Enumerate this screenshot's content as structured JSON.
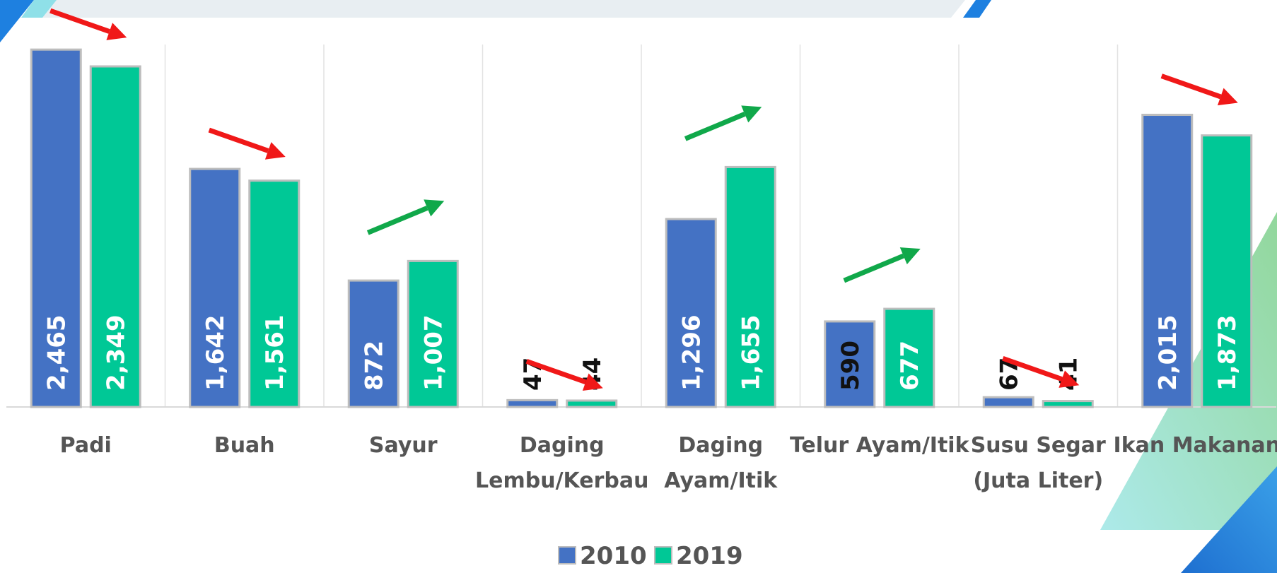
{
  "chart_data": {
    "type": "bar",
    "categories": [
      "Padi",
      "Buah",
      "Sayur",
      "Daging\nLembu/Kerbau",
      "Daging\nAyam/Itik",
      "Telur Ayam/Itik",
      "Susu Segar\n(Juta Liter)",
      "Ikan Makanan"
    ],
    "series": [
      {
        "name": "2010",
        "color": "#4472c4",
        "values": [
          2465,
          1642,
          872,
          47,
          1296,
          590,
          67,
          2015
        ],
        "value_labels": [
          "2,465",
          "1,642",
          "872",
          "47",
          "1,296",
          "590",
          "67",
          "2,015"
        ]
      },
      {
        "name": "2019",
        "color": "#00c896",
        "values": [
          2349,
          1561,
          1007,
          44,
          1655,
          677,
          41,
          1873
        ],
        "value_labels": [
          "2,349",
          "1,561",
          "1,007",
          "44",
          "1,655",
          "677",
          "41",
          "1,873"
        ]
      }
    ],
    "ylim": [
      0,
      2500
    ],
    "legend": "bottom"
  }
}
